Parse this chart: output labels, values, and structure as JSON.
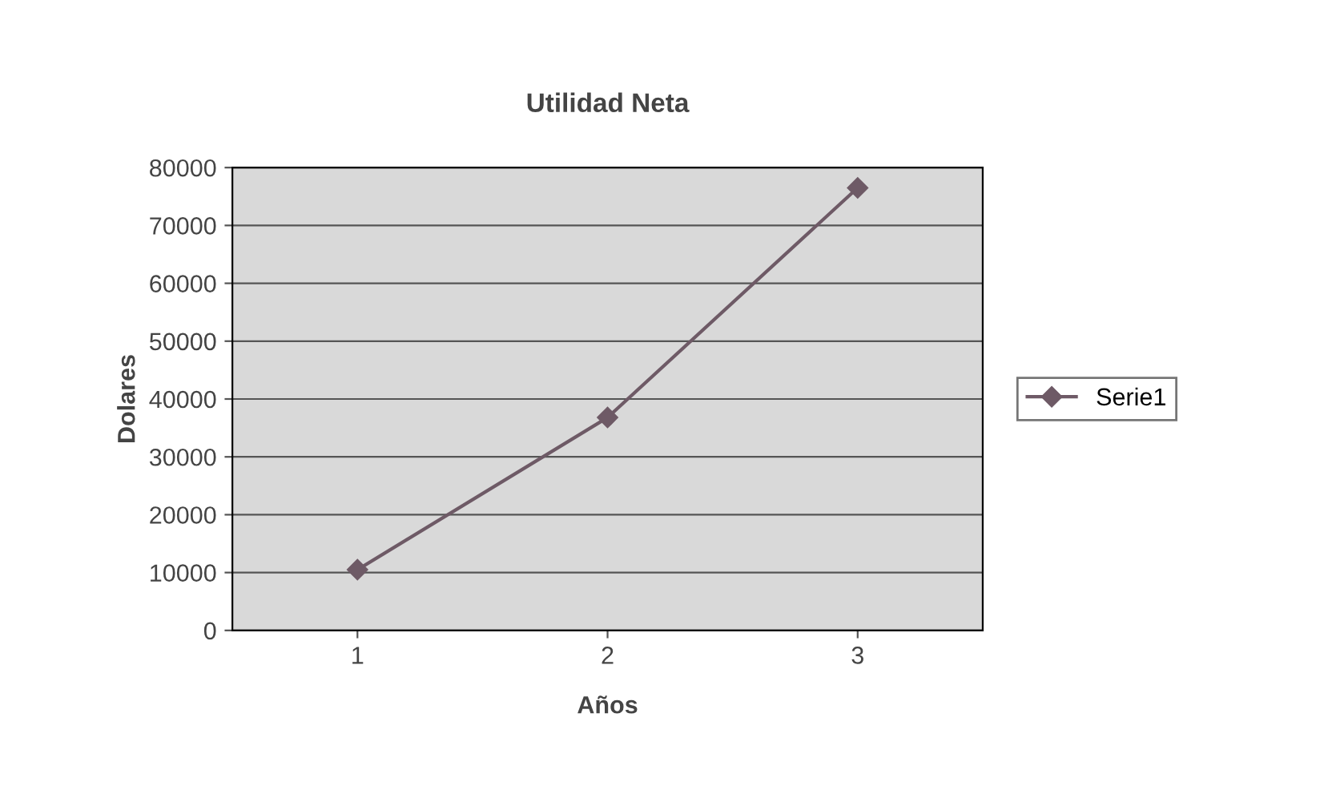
{
  "chart_data": {
    "type": "line",
    "title": "Utilidad Neta",
    "xlabel": "Años",
    "ylabel": "Dolares",
    "categories": [
      "1",
      "2",
      "3"
    ],
    "series": [
      {
        "name": "Serie1",
        "color": "#6e5a66",
        "values": [
          10500,
          36800,
          76500
        ]
      }
    ],
    "ylim": [
      0,
      80000
    ],
    "yticks": [
      0,
      10000,
      20000,
      30000,
      40000,
      50000,
      60000,
      70000,
      80000
    ],
    "grid": "y",
    "legend": "right",
    "marker": "diamond",
    "line_style": "solid"
  }
}
